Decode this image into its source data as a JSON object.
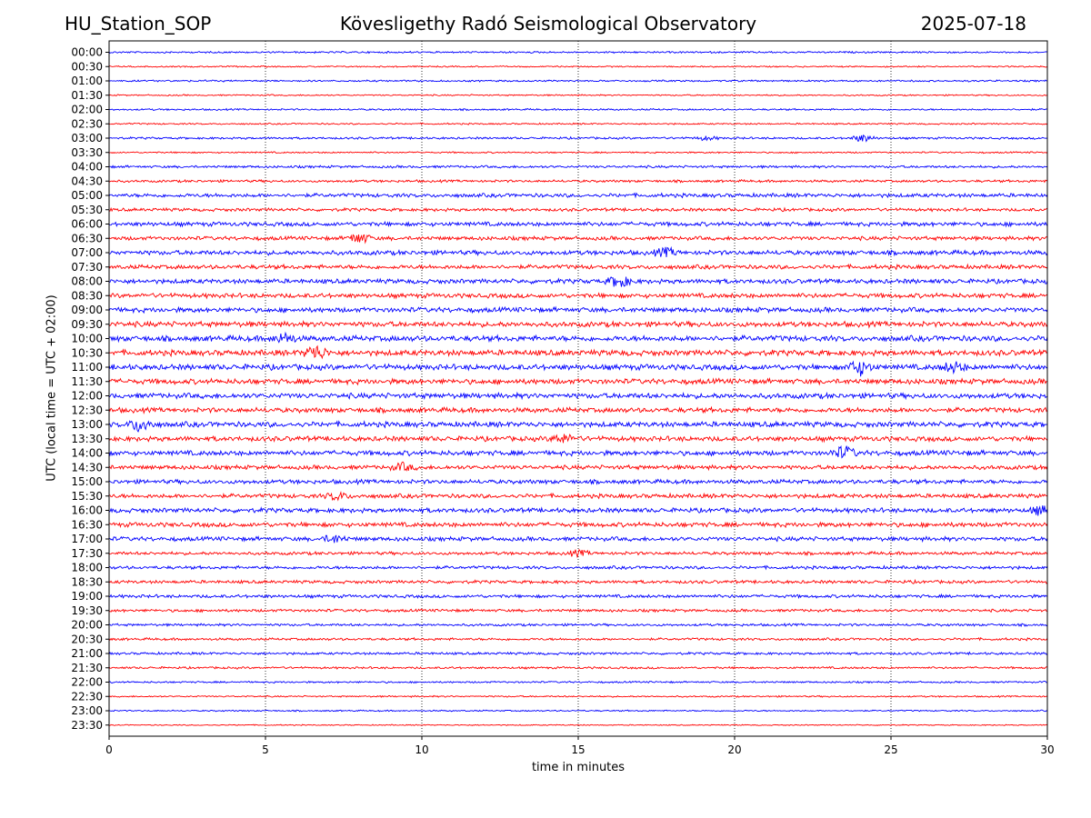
{
  "header": {
    "station": "HU_Station_SOP",
    "title": "Kövesligethy Radó Seismological Observatory",
    "date": "2025-07-18"
  },
  "chart_data": {
    "type": "line",
    "title": "Kövesligethy Radó Seismological Observatory",
    "xlabel": "time in minutes",
    "ylabel": "UTC (local time = UTC + 02:00)",
    "xlim": [
      0,
      30
    ],
    "xticks": [
      0,
      5,
      10,
      15,
      20,
      25,
      30
    ],
    "grid": "vertical dotted at x ticks",
    "trace_colors": [
      "#0000ff",
      "#ff0000"
    ],
    "rows": [
      "00:00",
      "00:30",
      "01:00",
      "01:30",
      "02:00",
      "02:30",
      "03:00",
      "03:30",
      "04:00",
      "04:30",
      "05:00",
      "05:30",
      "06:00",
      "06:30",
      "07:00",
      "07:30",
      "08:00",
      "08:30",
      "09:00",
      "09:30",
      "10:00",
      "10:30",
      "11:00",
      "11:30",
      "12:00",
      "12:30",
      "13:00",
      "13:30",
      "14:00",
      "14:30",
      "15:00",
      "15:30",
      "16:00",
      "16:30",
      "17:00",
      "17:30",
      "18:00",
      "18:30",
      "19:00",
      "19:30",
      "20:00",
      "20:30",
      "21:00",
      "21:30",
      "22:00",
      "22:30",
      "23:00",
      "23:30"
    ],
    "noise_level": [
      0.25,
      0.2,
      0.25,
      0.2,
      0.25,
      0.22,
      0.3,
      0.22,
      0.35,
      0.35,
      0.55,
      0.45,
      0.6,
      0.55,
      0.65,
      0.6,
      0.65,
      0.65,
      0.7,
      0.75,
      0.8,
      0.8,
      0.8,
      0.75,
      0.75,
      0.7,
      0.75,
      0.7,
      0.7,
      0.6,
      0.6,
      0.6,
      0.65,
      0.65,
      0.6,
      0.45,
      0.45,
      0.45,
      0.45,
      0.4,
      0.35,
      0.35,
      0.35,
      0.3,
      0.25,
      0.22,
      0.2,
      0.15
    ],
    "bursts": [
      {
        "row": "03:00",
        "x": 24.1,
        "amp": 4
      },
      {
        "row": "03:00",
        "x": 19.1,
        "amp": 2
      },
      {
        "row": "06:30",
        "x": 8.0,
        "amp": 3
      },
      {
        "row": "07:00",
        "x": 17.8,
        "amp": 2
      },
      {
        "row": "08:00",
        "x": 16.3,
        "amp": 3
      },
      {
        "row": "10:00",
        "x": 5.6,
        "amp": 2
      },
      {
        "row": "10:30",
        "x": 6.6,
        "amp": 3
      },
      {
        "row": "11:00",
        "x": 24.0,
        "amp": 3
      },
      {
        "row": "11:00",
        "x": 27.0,
        "amp": 2
      },
      {
        "row": "13:00",
        "x": 1.0,
        "amp": 3
      },
      {
        "row": "13:30",
        "x": 14.5,
        "amp": 2
      },
      {
        "row": "14:00",
        "x": 23.5,
        "amp": 3
      },
      {
        "row": "14:30",
        "x": 9.4,
        "amp": 2
      },
      {
        "row": "15:30",
        "x": 7.3,
        "amp": 2
      },
      {
        "row": "16:00",
        "x": 29.8,
        "amp": 2
      },
      {
        "row": "17:00",
        "x": 7.2,
        "amp": 2
      },
      {
        "row": "17:30",
        "x": 15.0,
        "amp": 2
      }
    ]
  }
}
